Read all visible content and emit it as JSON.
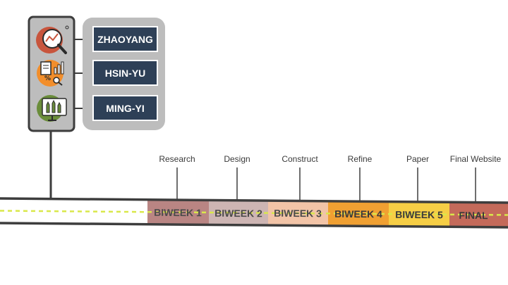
{
  "team": {
    "members": [
      "ZHAOYANG",
      "HSIN-YU",
      "MING-YI"
    ],
    "icons": [
      {
        "name": "magnifier-chart-icon",
        "color": "#C8553D"
      },
      {
        "name": "documents-percent-icon",
        "color": "#F28E2B"
      },
      {
        "name": "monitor-pencils-icon",
        "color": "#6A8D3A"
      }
    ]
  },
  "timeline": {
    "phases": [
      "Research",
      "Design",
      "Construct",
      "Refine",
      "Paper",
      "Final Website"
    ],
    "segments": [
      {
        "label": "BIWEEK 1",
        "color": "#B98583",
        "text_color": "#4a4a4a"
      },
      {
        "label": "BIWEEK 2",
        "color": "#CDB5B3",
        "text_color": "#4a4a4a"
      },
      {
        "label": "BIWEEK 3",
        "color": "#F2C4A7",
        "text_color": "#4a4a4a"
      },
      {
        "label": "BIWEEK 4",
        "color": "#F0A032",
        "text_color": "#3a3a3a"
      },
      {
        "label": "BIWEEK 5",
        "color": "#F6CE45",
        "text_color": "#3a3a3a"
      },
      {
        "label": "FINAL",
        "color": "#C46A5A",
        "text_color": "#3a3a3a"
      }
    ]
  },
  "colors": {
    "dark_line": "#3d3d3d",
    "name_box": "#2E4057",
    "dash": "#D9E84A",
    "panel_gray": "#BDBDBD"
  }
}
